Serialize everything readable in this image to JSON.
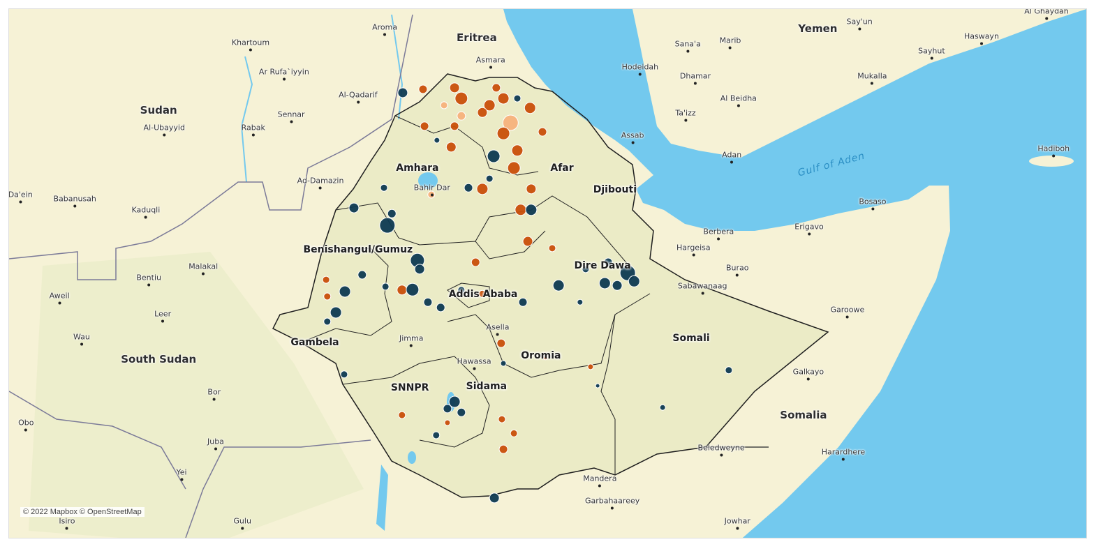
{
  "attribution": "© 2022 Mapbox © OpenStreetMap",
  "colors": {
    "sea": "#73c9ee",
    "land": "#f6f2d6",
    "ethiopia_land": "#ebebc6",
    "orange": "#c94f09",
    "navy": "#0e3a52",
    "peach": "#f7b27c"
  },
  "labels": [
    {
      "name": "Khartoum",
      "type": "city",
      "lon": 32.53,
      "lat": 15.59
    },
    {
      "name": "Aroma",
      "type": "city",
      "lon": 36.1,
      "lat": 15.99
    },
    {
      "name": "Eritrea",
      "type": "country",
      "lon": 38.55,
      "lat": 15.72
    },
    {
      "name": "Asmara",
      "type": "city",
      "lon": 38.92,
      "lat": 15.13
    },
    {
      "name": "Ar Rufa`iyyin",
      "type": "city",
      "lon": 33.42,
      "lat": 14.82
    },
    {
      "name": "Al-Qadarif",
      "type": "city",
      "lon": 35.39,
      "lat": 14.21
    },
    {
      "name": "Sennar",
      "type": "city",
      "lon": 33.61,
      "lat": 13.7
    },
    {
      "name": "Rabak",
      "type": "city",
      "lon": 32.6,
      "lat": 13.35
    },
    {
      "name": "Sudan",
      "type": "country",
      "lon": 30.08,
      "lat": 13.81
    },
    {
      "name": "Al-Ubayyid",
      "type": "city",
      "lon": 30.23,
      "lat": 13.35
    },
    {
      "name": "Ad-Damazin",
      "type": "city",
      "lon": 34.39,
      "lat": 11.96
    },
    {
      "name": "Babanusah",
      "type": "city",
      "lon": 27.85,
      "lat": 11.48
    },
    {
      "name": "Kaduqli",
      "type": "city",
      "lon": 29.74,
      "lat": 11.19
    },
    {
      "name": "Da'ein",
      "type": "city",
      "lon": 26.4,
      "lat": 11.59
    },
    {
      "name": "Malakal",
      "type": "city",
      "lon": 31.27,
      "lat": 9.7
    },
    {
      "name": "Bentiu",
      "type": "city",
      "lon": 29.82,
      "lat": 9.41
    },
    {
      "name": "Aweil",
      "type": "city",
      "lon": 27.44,
      "lat": 8.93
    },
    {
      "name": "Leer",
      "type": "city",
      "lon": 30.19,
      "lat": 8.45
    },
    {
      "name": "Wau",
      "type": "city",
      "lon": 28.03,
      "lat": 7.85
    },
    {
      "name": "South Sudan",
      "type": "country",
      "lon": 30.08,
      "lat": 7.26
    },
    {
      "name": "Bor",
      "type": "city",
      "lon": 31.56,
      "lat": 6.4
    },
    {
      "name": "Obo",
      "type": "city",
      "lon": 26.55,
      "lat": 5.59
    },
    {
      "name": "Juba",
      "type": "city",
      "lon": 31.6,
      "lat": 5.09
    },
    {
      "name": "Yei",
      "type": "city",
      "lon": 30.69,
      "lat": 4.29
    },
    {
      "name": "Isiro",
      "type": "city",
      "lon": 27.64,
      "lat": 3.0
    },
    {
      "name": "Gulu",
      "type": "city",
      "lon": 32.31,
      "lat": 3.0
    },
    {
      "name": "Amhara",
      "type": "region",
      "lon": 36.97,
      "lat": 12.29
    },
    {
      "name": "Afar",
      "type": "region",
      "lon": 40.82,
      "lat": 12.29
    },
    {
      "name": "Benishangul/Gumuz",
      "type": "region",
      "lon": 35.39,
      "lat": 10.14
    },
    {
      "name": "Addis Ababa",
      "type": "region",
      "lon": 38.72,
      "lat": 8.97
    },
    {
      "name": "Dire Dawa",
      "type": "region",
      "lon": 41.9,
      "lat": 9.72
    },
    {
      "name": "Gambela",
      "type": "region",
      "lon": 34.24,
      "lat": 7.7
    },
    {
      "name": "Oromia",
      "type": "region",
      "lon": 40.26,
      "lat": 7.35
    },
    {
      "name": "Somali",
      "type": "region",
      "lon": 44.26,
      "lat": 7.81
    },
    {
      "name": "SNNPR",
      "type": "region",
      "lon": 36.77,
      "lat": 6.51
    },
    {
      "name": "Sidama",
      "type": "region",
      "lon": 38.81,
      "lat": 6.54
    },
    {
      "name": "Bahir Dar",
      "type": "city",
      "lon": 37.36,
      "lat": 11.77
    },
    {
      "name": "Asella",
      "type": "city",
      "lon": 39.11,
      "lat": 8.1
    },
    {
      "name": "Jimma",
      "type": "city",
      "lon": 36.81,
      "lat": 7.81
    },
    {
      "name": "Hawassa",
      "type": "city",
      "lon": 38.48,
      "lat": 7.2
    },
    {
      "name": "Djibouti",
      "type": "region",
      "lon": 42.23,
      "lat": 11.72
    },
    {
      "name": "Assab",
      "type": "city",
      "lon": 42.7,
      "lat": 13.15
    },
    {
      "name": "Hodeidah",
      "type": "city",
      "lon": 42.9,
      "lat": 14.95
    },
    {
      "name": "Sana'a",
      "type": "city",
      "lon": 44.17,
      "lat": 15.55
    },
    {
      "name": "Marib",
      "type": "city",
      "lon": 45.3,
      "lat": 15.65
    },
    {
      "name": "Dhamar",
      "type": "city",
      "lon": 44.37,
      "lat": 14.71
    },
    {
      "name": "Al Beidha",
      "type": "city",
      "lon": 45.52,
      "lat": 14.12
    },
    {
      "name": "Ta'izz",
      "type": "city",
      "lon": 44.11,
      "lat": 13.74
    },
    {
      "name": "Adan",
      "type": "city",
      "lon": 45.34,
      "lat": 12.64
    },
    {
      "name": "Yemen",
      "type": "country",
      "lon": 47.63,
      "lat": 15.96
    },
    {
      "name": "Say'un",
      "type": "city",
      "lon": 48.74,
      "lat": 16.14
    },
    {
      "name": "Al Ghaydah",
      "type": "city",
      "lon": 53.72,
      "lat": 16.42
    },
    {
      "name": "Haswayn",
      "type": "city",
      "lon": 51.99,
      "lat": 15.76
    },
    {
      "name": "Sayhut",
      "type": "city",
      "lon": 50.66,
      "lat": 15.37
    },
    {
      "name": "Mukalla",
      "type": "city",
      "lon": 49.08,
      "lat": 14.71
    },
    {
      "name": "Hadiboh",
      "type": "city",
      "lon": 53.91,
      "lat": 12.8
    },
    {
      "name": "Gulf of Aden",
      "type": "water",
      "lon": 48.0,
      "lat": 12.38
    },
    {
      "name": "Bosaso",
      "type": "city",
      "lon": 49.09,
      "lat": 11.41
    },
    {
      "name": "Erigavo",
      "type": "city",
      "lon": 47.4,
      "lat": 10.75
    },
    {
      "name": "Berbera",
      "type": "city",
      "lon": 44.99,
      "lat": 10.62
    },
    {
      "name": "Hargeisa",
      "type": "city",
      "lon": 44.32,
      "lat": 10.2
    },
    {
      "name": "Burao",
      "type": "city",
      "lon": 45.49,
      "lat": 9.66
    },
    {
      "name": "Sabawanaag",
      "type": "city",
      "lon": 44.56,
      "lat": 9.19
    },
    {
      "name": "Garoowe",
      "type": "city",
      "lon": 48.42,
      "lat": 8.56
    },
    {
      "name": "Galkayo",
      "type": "city",
      "lon": 47.38,
      "lat": 6.93
    },
    {
      "name": "Somalia",
      "type": "country",
      "lon": 47.25,
      "lat": 5.79
    },
    {
      "name": "Beledweyne",
      "type": "city",
      "lon": 45.06,
      "lat": 4.93
    },
    {
      "name": "Harardhere",
      "type": "city",
      "lon": 48.31,
      "lat": 4.82
    },
    {
      "name": "Mandera",
      "type": "city",
      "lon": 41.83,
      "lat": 4.12
    },
    {
      "name": "Garbahaareey",
      "type": "city",
      "lon": 42.16,
      "lat": 3.53
    },
    {
      "name": "Jowhar",
      "type": "city",
      "lon": 45.49,
      "lat": 3.0
    }
  ],
  "markers": [
    {
      "lon": 36.58,
      "lat": 14.27,
      "size": 7,
      "color": "navy"
    },
    {
      "lon": 37.12,
      "lat": 14.36,
      "size": 6,
      "color": "orange"
    },
    {
      "lon": 38.14,
      "lat": 14.12,
      "size": 9,
      "color": "orange"
    },
    {
      "lon": 38.89,
      "lat": 13.94,
      "size": 8,
      "color": "orange"
    },
    {
      "lon": 39.45,
      "lat": 13.48,
      "size": 11,
      "color": "peach"
    },
    {
      "lon": 39.97,
      "lat": 13.87,
      "size": 8,
      "color": "orange"
    },
    {
      "lon": 39.26,
      "lat": 13.2,
      "size": 9,
      "color": "orange"
    },
    {
      "lon": 38.7,
      "lat": 13.75,
      "size": 7,
      "color": "orange"
    },
    {
      "lon": 37.96,
      "lat": 13.39,
      "size": 6,
      "color": "orange"
    },
    {
      "lon": 37.87,
      "lat": 12.84,
      "size": 7,
      "color": "orange"
    },
    {
      "lon": 39.63,
      "lat": 12.75,
      "size": 8,
      "color": "orange"
    },
    {
      "lon": 39.54,
      "lat": 12.29,
      "size": 9,
      "color": "orange"
    },
    {
      "lon": 39.0,
      "lat": 12.6,
      "size": 9,
      "color": "navy"
    },
    {
      "lon": 40.0,
      "lat": 11.74,
      "size": 7,
      "color": "orange"
    },
    {
      "lon": 39.72,
      "lat": 11.19,
      "size": 8,
      "color": "orange"
    },
    {
      "lon": 40.0,
      "lat": 11.19,
      "size": 8,
      "color": "navy"
    },
    {
      "lon": 38.7,
      "lat": 11.74,
      "size": 8,
      "color": "orange"
    },
    {
      "lon": 38.33,
      "lat": 11.77,
      "size": 6,
      "color": "navy"
    },
    {
      "lon": 40.3,
      "lat": 13.24,
      "size": 6,
      "color": "orange"
    },
    {
      "lon": 37.16,
      "lat": 13.39,
      "size": 6,
      "color": "orange"
    },
    {
      "lon": 39.91,
      "lat": 10.36,
      "size": 7,
      "color": "orange"
    },
    {
      "lon": 40.56,
      "lat": 10.18,
      "size": 5,
      "color": "orange"
    },
    {
      "lon": 37.34,
      "lat": 11.59,
      "size": 5,
      "color": "peach"
    },
    {
      "lon": 37.68,
      "lat": 13.94,
      "size": 5,
      "color": "peach"
    },
    {
      "lon": 38.14,
      "lat": 13.66,
      "size": 6,
      "color": "peach"
    },
    {
      "lon": 39.07,
      "lat": 14.4,
      "size": 6,
      "color": "orange"
    },
    {
      "lon": 39.63,
      "lat": 14.12,
      "size": 5,
      "color": "navy"
    },
    {
      "lon": 37.96,
      "lat": 14.4,
      "size": 7,
      "color": "orange"
    },
    {
      "lon": 39.26,
      "lat": 14.12,
      "size": 8,
      "color": "orange"
    },
    {
      "lon": 38.89,
      "lat": 12.01,
      "size": 5,
      "color": "navy"
    },
    {
      "lon": 37.49,
      "lat": 13.02,
      "size": 4,
      "color": "navy"
    },
    {
      "lon": 35.28,
      "lat": 11.24,
      "size": 7,
      "color": "navy"
    },
    {
      "lon": 36.17,
      "lat": 10.78,
      "size": 11,
      "color": "navy"
    },
    {
      "lon": 36.29,
      "lat": 11.09,
      "size": 6,
      "color": "navy"
    },
    {
      "lon": 36.08,
      "lat": 11.77,
      "size": 5,
      "color": "navy"
    },
    {
      "lon": 36.97,
      "lat": 9.86,
      "size": 10,
      "color": "navy"
    },
    {
      "lon": 37.03,
      "lat": 9.63,
      "size": 7,
      "color": "navy"
    },
    {
      "lon": 36.56,
      "lat": 9.08,
      "size": 7,
      "color": "orange"
    },
    {
      "lon": 36.84,
      "lat": 9.09,
      "size": 9,
      "color": "navy"
    },
    {
      "lon": 35.04,
      "lat": 9.04,
      "size": 8,
      "color": "navy"
    },
    {
      "lon": 34.8,
      "lat": 8.49,
      "size": 8,
      "color": "navy"
    },
    {
      "lon": 34.57,
      "lat": 8.25,
      "size": 5,
      "color": "navy"
    },
    {
      "lon": 35.5,
      "lat": 9.48,
      "size": 6,
      "color": "navy"
    },
    {
      "lon": 36.12,
      "lat": 9.17,
      "size": 5,
      "color": "navy"
    },
    {
      "lon": 37.25,
      "lat": 8.76,
      "size": 6,
      "color": "navy"
    },
    {
      "lon": 37.59,
      "lat": 8.62,
      "size": 6,
      "color": "navy"
    },
    {
      "lon": 38.14,
      "lat": 9.08,
      "size": 5,
      "color": "navy"
    },
    {
      "lon": 38.52,
      "lat": 9.81,
      "size": 6,
      "color": "orange"
    },
    {
      "lon": 38.7,
      "lat": 8.98,
      "size": 5,
      "color": "orange"
    },
    {
      "lon": 39.78,
      "lat": 8.76,
      "size": 6,
      "color": "navy"
    },
    {
      "lon": 40.73,
      "lat": 9.2,
      "size": 8,
      "color": "navy"
    },
    {
      "lon": 41.45,
      "lat": 9.63,
      "size": 5,
      "color": "navy"
    },
    {
      "lon": 41.96,
      "lat": 9.26,
      "size": 8,
      "color": "navy"
    },
    {
      "lon": 42.29,
      "lat": 9.2,
      "size": 7,
      "color": "navy"
    },
    {
      "lon": 42.57,
      "lat": 9.53,
      "size": 11,
      "color": "navy"
    },
    {
      "lon": 42.74,
      "lat": 9.31,
      "size": 8,
      "color": "navy"
    },
    {
      "lon": 42.05,
      "lat": 9.81,
      "size": 6,
      "color": "navy"
    },
    {
      "lon": 39.2,
      "lat": 7.68,
      "size": 6,
      "color": "orange"
    },
    {
      "lon": 39.26,
      "lat": 7.15,
      "size": 4,
      "color": "navy"
    },
    {
      "lon": 37.96,
      "lat": 6.14,
      "size": 8,
      "color": "navy"
    },
    {
      "lon": 38.14,
      "lat": 5.86,
      "size": 6,
      "color": "navy"
    },
    {
      "lon": 37.77,
      "lat": 5.96,
      "size": 6,
      "color": "navy"
    },
    {
      "lon": 36.56,
      "lat": 5.79,
      "size": 5,
      "color": "orange"
    },
    {
      "lon": 37.47,
      "lat": 5.26,
      "size": 5,
      "color": "navy"
    },
    {
      "lon": 39.26,
      "lat": 4.89,
      "size": 6,
      "color": "orange"
    },
    {
      "lon": 39.22,
      "lat": 5.68,
      "size": 5,
      "color": "orange"
    },
    {
      "lon": 39.54,
      "lat": 5.31,
      "size": 5,
      "color": "orange"
    },
    {
      "lon": 39.02,
      "lat": 3.61,
      "size": 7,
      "color": "navy"
    },
    {
      "lon": 45.26,
      "lat": 6.97,
      "size": 5,
      "color": "navy"
    },
    {
      "lon": 43.5,
      "lat": 5.99,
      "size": 4,
      "color": "navy"
    },
    {
      "lon": 35.02,
      "lat": 6.86,
      "size": 5,
      "color": "navy"
    },
    {
      "lon": 34.57,
      "lat": 8.91,
      "size": 5,
      "color": "orange"
    },
    {
      "lon": 34.54,
      "lat": 9.35,
      "size": 5,
      "color": "orange"
    },
    {
      "lon": 37.77,
      "lat": 5.59,
      "size": 4,
      "color": "orange"
    },
    {
      "lon": 41.58,
      "lat": 7.06,
      "size": 4,
      "color": "orange"
    },
    {
      "lon": 41.77,
      "lat": 6.56,
      "size": 3,
      "color": "navy"
    },
    {
      "lon": 40.38,
      "lat": 7.3,
      "size": 3,
      "color": "orange"
    },
    {
      "lon": 41.3,
      "lat": 8.76,
      "size": 4,
      "color": "navy"
    }
  ]
}
